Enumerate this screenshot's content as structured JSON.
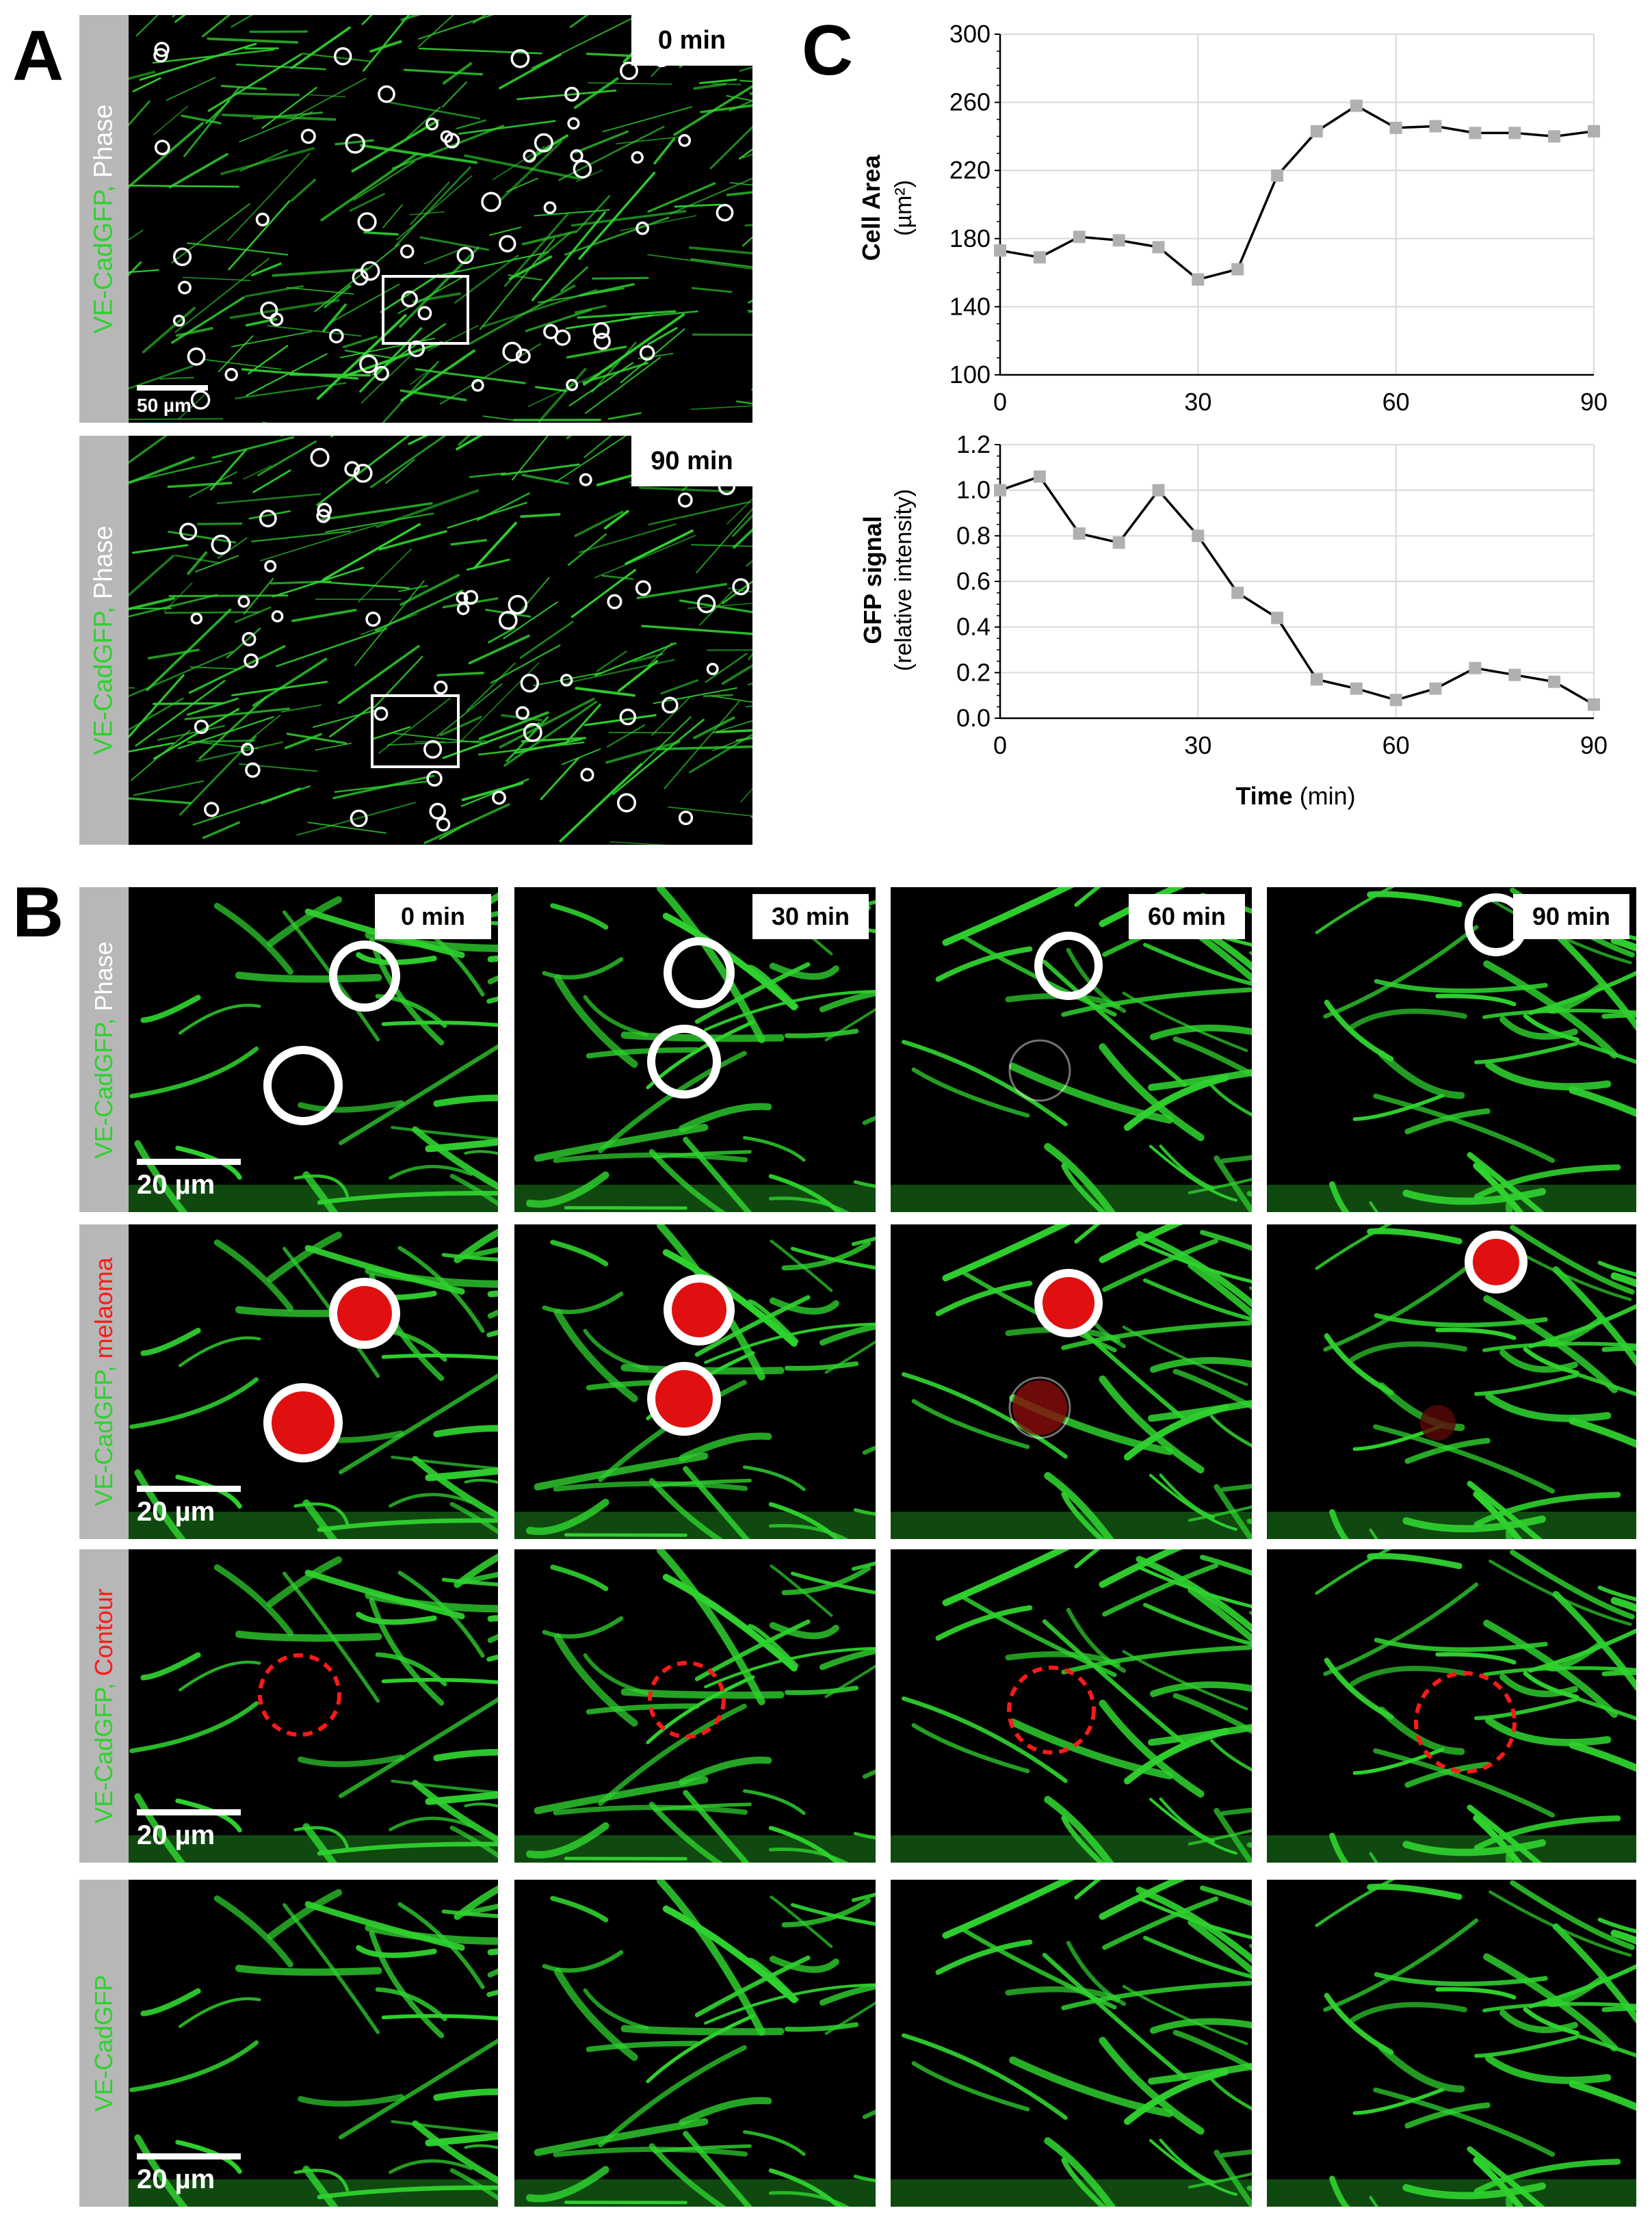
{
  "panels": {
    "a": {
      "letter": "A",
      "side_label_green": "VE-CadGFP,",
      "side_label_white": " Phase",
      "top_time": "0 min",
      "bottom_time": "90 min",
      "scale_label": "50 µm"
    },
    "b": {
      "letter": "B",
      "times": [
        "0 min",
        "30 min",
        "60 min",
        "90 min"
      ],
      "rows": [
        {
          "green": "VE-CadGFP,",
          "second": " Phase",
          "second_color": "#ffffff",
          "scale": "20 µm"
        },
        {
          "green": "VE-CadGFP,",
          "second": " melaoma",
          "second_color": "#ff1a1a",
          "scale": "20 µm"
        },
        {
          "green": "VE-CadGFP,",
          "second": " Contour",
          "second_color": "#ff1a1a",
          "scale": "20 µm"
        },
        {
          "green": "VE-CadGFP",
          "second": "",
          "second_color": "#ffffff",
          "scale": "20 µm"
        }
      ]
    },
    "c": {
      "letter": "C"
    }
  },
  "colors": {
    "gfp_green": "#2fd12f",
    "melanoma_red": "#e01010",
    "contour_red": "#ff1a1a",
    "marker_gray": "#b0b0b0"
  },
  "chart_data": [
    {
      "type": "line",
      "ylabel_bold": "Cell Area",
      "ylabel_unit": "(µm²)",
      "x": [
        0,
        6,
        12,
        18,
        24,
        30,
        36,
        42,
        48,
        54,
        60,
        66,
        72,
        78,
        84,
        90
      ],
      "values": [
        173,
        169,
        181,
        179,
        175,
        156,
        162,
        217,
        243,
        258,
        245,
        246,
        242,
        242,
        240,
        243
      ],
      "xlim": [
        0,
        90
      ],
      "ylim": [
        100,
        300
      ],
      "xticks": [
        0,
        30,
        60,
        90
      ],
      "yticks": [
        100,
        140,
        180,
        220,
        260,
        300
      ],
      "grid": true
    },
    {
      "type": "line",
      "ylabel_bold": "GFP signal",
      "ylabel_unit": "(relative intensity)",
      "xlabel_bold": "Time",
      "xlabel_unit": " (min)",
      "x": [
        0,
        6,
        12,
        18,
        24,
        30,
        36,
        42,
        48,
        54,
        60,
        66,
        72,
        78,
        84,
        90
      ],
      "values": [
        1.0,
        1.06,
        0.81,
        0.77,
        1.0,
        0.8,
        0.55,
        0.44,
        0.17,
        0.13,
        0.08,
        0.13,
        0.22,
        0.19,
        0.16,
        0.06
      ],
      "xlim": [
        0,
        90
      ],
      "ylim": [
        0,
        1.2
      ],
      "xticks": [
        0,
        30,
        60,
        90
      ],
      "yticks": [
        "0.0",
        "0.2",
        "0.4",
        "0.6",
        "0.8",
        "1.0",
        "1.2"
      ],
      "grid": true
    }
  ]
}
